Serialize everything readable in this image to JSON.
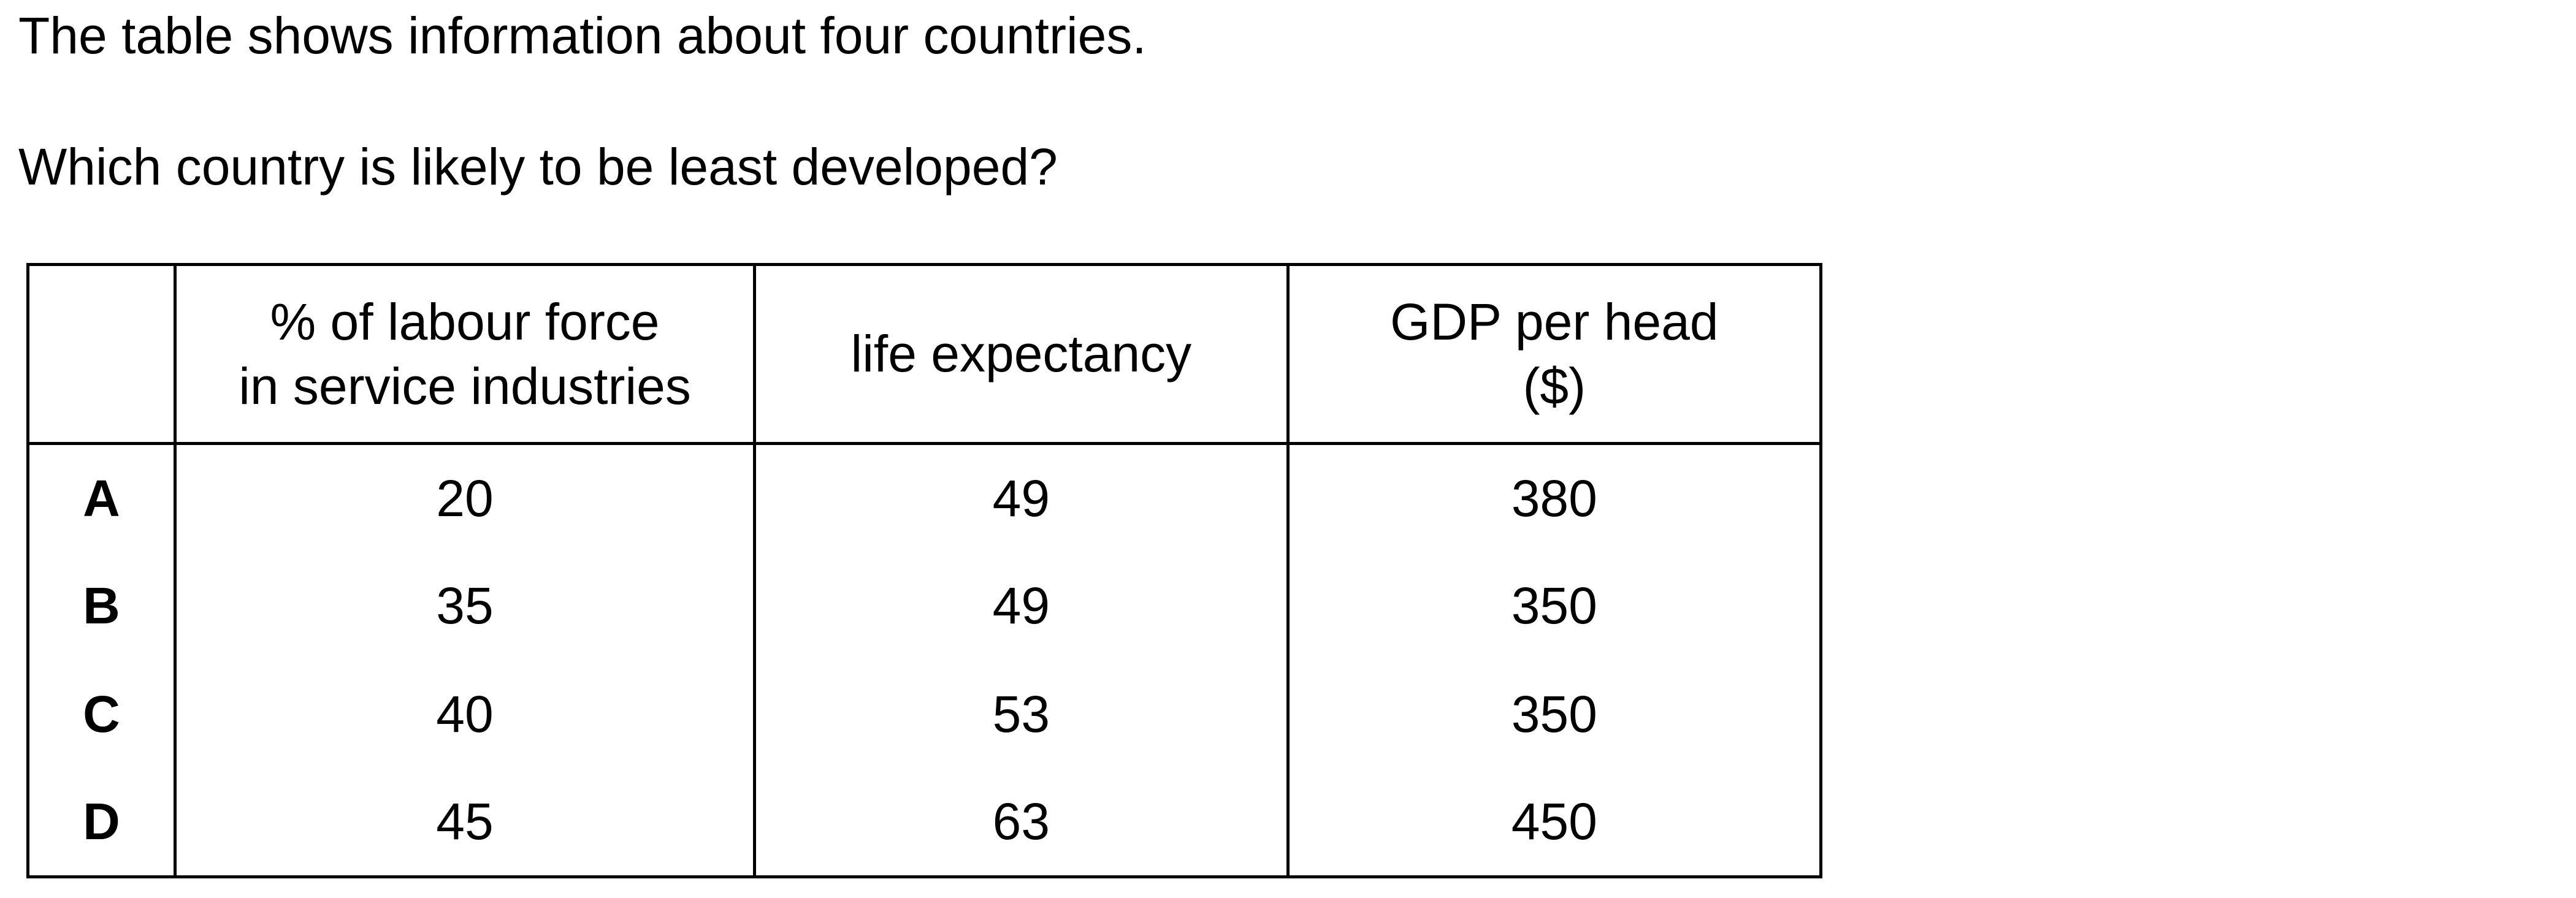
{
  "intro": "The table shows information about four countries.",
  "question": "Which country is likely to be least developed?",
  "table": {
    "headers": [
      "",
      [
        "% of labour force",
        "in service industries"
      ],
      [
        "life expectancy"
      ],
      [
        "GDP per head",
        "($)"
      ]
    ],
    "rows": [
      {
        "label": "A",
        "service": "20",
        "life": "49",
        "gdp": "380"
      },
      {
        "label": "B",
        "service": "35",
        "life": "49",
        "gdp": "350"
      },
      {
        "label": "C",
        "service": "40",
        "life": "53",
        "gdp": "350"
      },
      {
        "label": "D",
        "service": "45",
        "life": "63",
        "gdp": "450"
      }
    ]
  }
}
